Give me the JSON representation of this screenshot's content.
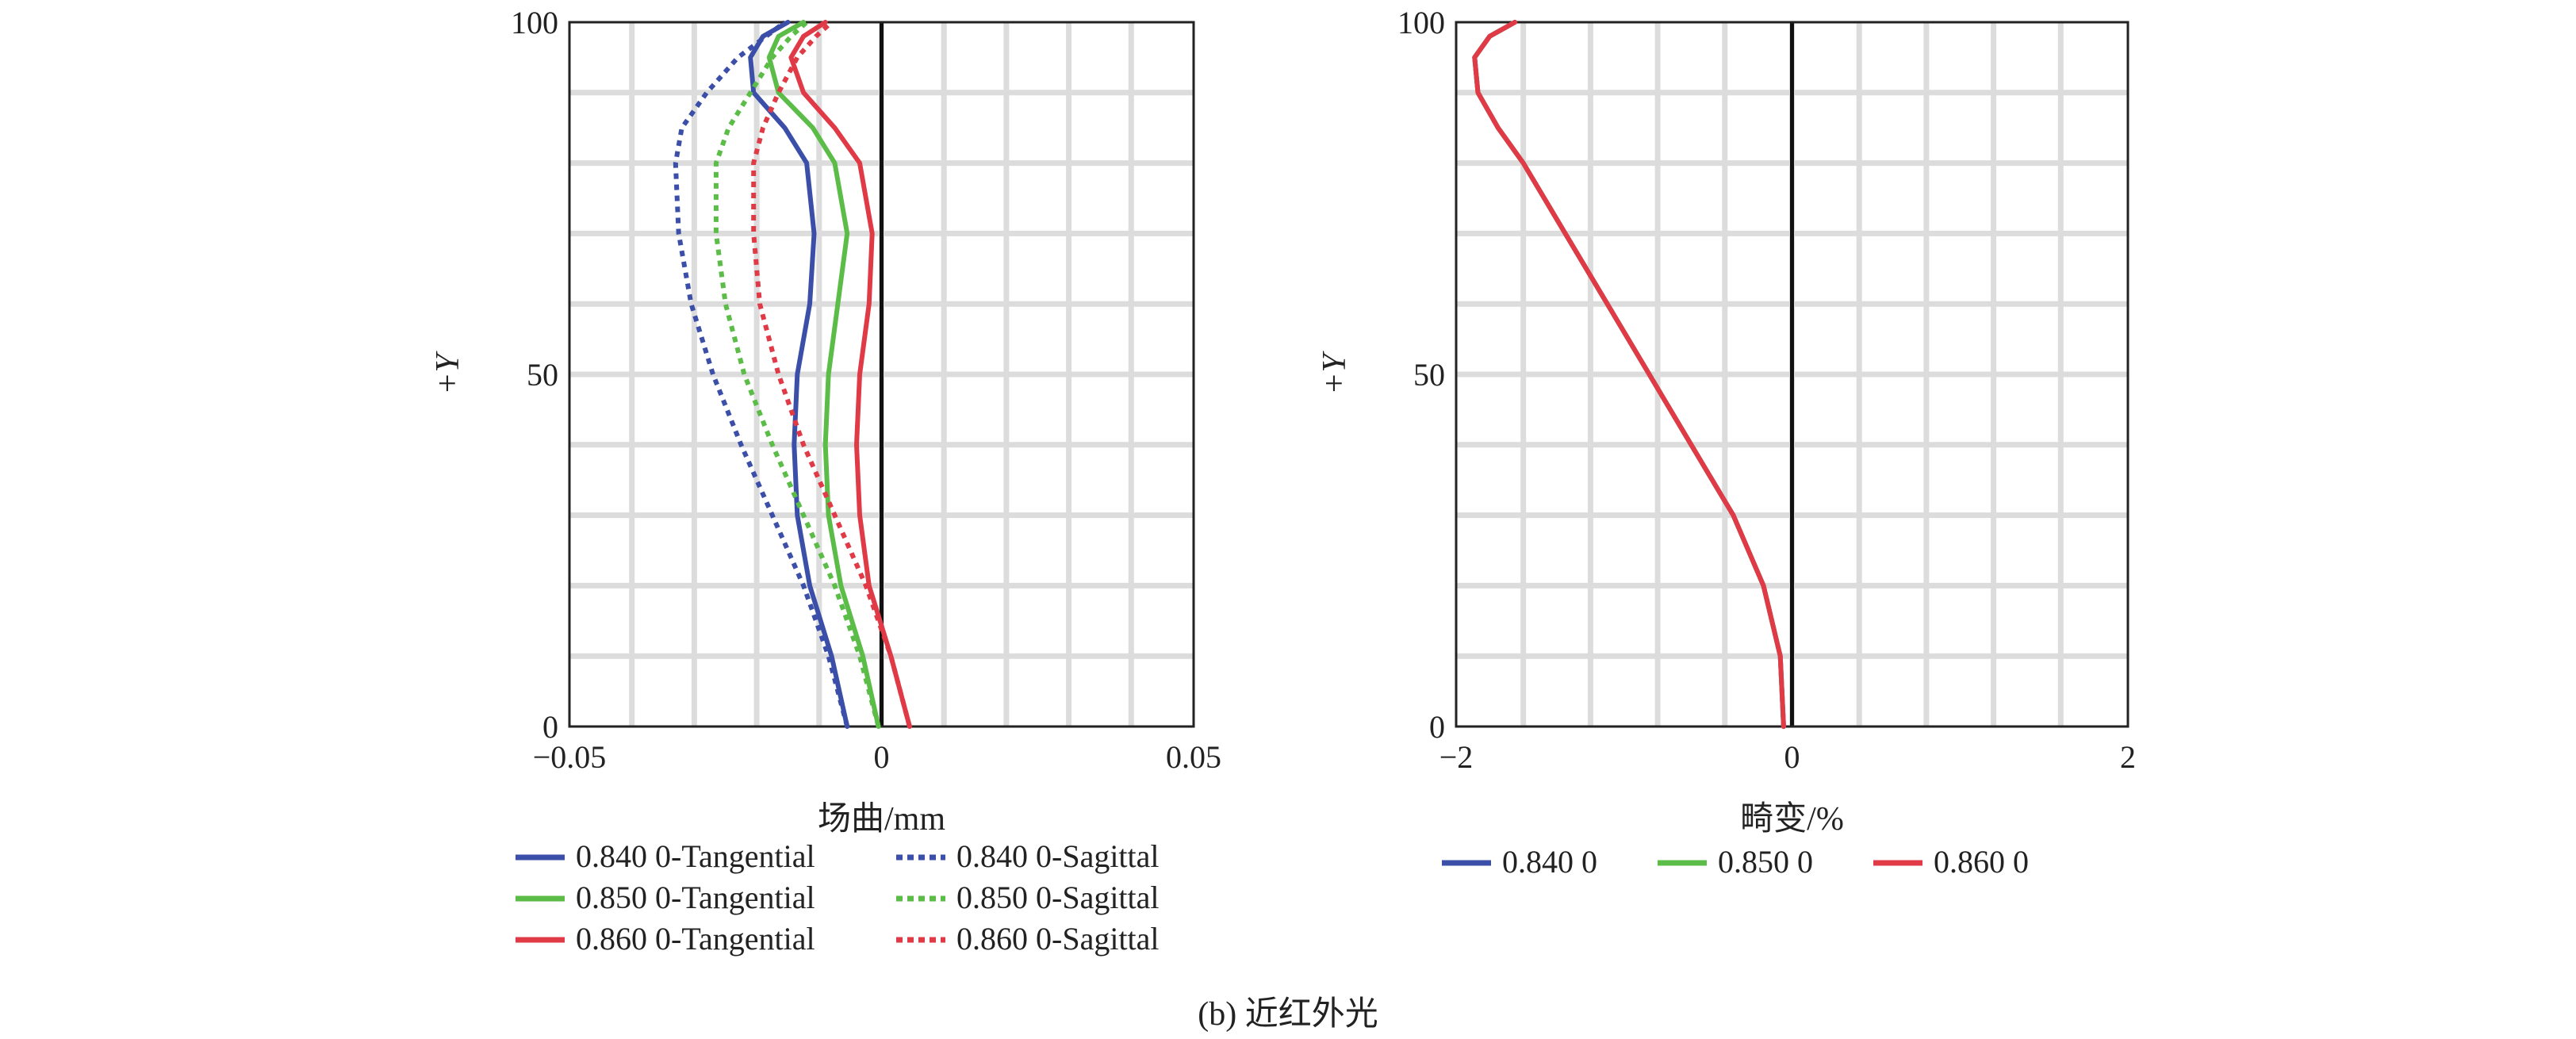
{
  "caption": "(b) 近红外光",
  "chart_data": [
    {
      "type": "line",
      "xlabel": "场曲/mm",
      "ylabel": "+Y",
      "xlim": [
        -0.05,
        0.05
      ],
      "ylim": [
        0,
        100
      ],
      "xticks": [
        "−0.05",
        "0",
        "0.05"
      ],
      "yticks": [
        "0",
        "50",
        "100"
      ],
      "grid": true,
      "legend_position": "bottom",
      "colors": {
        "blue": "#3b4fa8",
        "green": "#5bbd47",
        "red": "#e03a47"
      },
      "series": [
        {
          "name": "0.840 0-Tangential",
          "color": "#3b4fa8",
          "dash": "solid",
          "x": [
            -0.0055,
            -0.008,
            -0.0115,
            -0.0135,
            -0.014,
            -0.0135,
            -0.0115,
            -0.0108,
            -0.012,
            -0.0155,
            -0.0205,
            -0.021,
            -0.019,
            -0.015
          ],
          "y": [
            0,
            10,
            20,
            30,
            40,
            50,
            60,
            70,
            80,
            85,
            90,
            95,
            98,
            100
          ]
        },
        {
          "name": "0.840 0-Sagittal",
          "color": "#3b4fa8",
          "dash": "dotted",
          "x": [
            -0.0055,
            -0.0085,
            -0.0125,
            -0.0175,
            -0.0225,
            -0.027,
            -0.0305,
            -0.0325,
            -0.033,
            -0.032,
            -0.028,
            -0.023,
            -0.0185,
            -0.0155
          ],
          "y": [
            0,
            10,
            20,
            30,
            40,
            50,
            60,
            70,
            80,
            85,
            90,
            95,
            98,
            100
          ]
        },
        {
          "name": "0.850 0-Tangential",
          "color": "#5bbd47",
          "dash": "solid",
          "x": [
            -0.0005,
            -0.003,
            -0.0065,
            -0.0085,
            -0.009,
            -0.0085,
            -0.007,
            -0.0055,
            -0.0075,
            -0.011,
            -0.0165,
            -0.018,
            -0.0165,
            -0.0125
          ],
          "y": [
            0,
            10,
            20,
            30,
            40,
            50,
            60,
            70,
            80,
            85,
            90,
            95,
            98,
            100
          ]
        },
        {
          "name": "0.850 0-Sagittal",
          "color": "#5bbd47",
          "dash": "dotted",
          "x": [
            -0.0005,
            -0.0035,
            -0.0075,
            -0.0125,
            -0.0175,
            -0.022,
            -0.025,
            -0.0265,
            -0.0265,
            -0.0245,
            -0.021,
            -0.0175,
            -0.0145,
            -0.012
          ],
          "y": [
            0,
            10,
            20,
            30,
            40,
            50,
            60,
            70,
            80,
            85,
            90,
            95,
            98,
            100
          ]
        },
        {
          "name": "0.860 0-Tangential",
          "color": "#e03a47",
          "dash": "solid",
          "x": [
            0.0045,
            0.0015,
            -0.002,
            -0.0035,
            -0.004,
            -0.0035,
            -0.002,
            -0.0015,
            -0.0035,
            -0.0075,
            -0.0125,
            -0.0145,
            -0.0125,
            -0.009
          ],
          "y": [
            0,
            10,
            20,
            30,
            40,
            50,
            60,
            70,
            80,
            85,
            90,
            95,
            98,
            100
          ]
        },
        {
          "name": "0.860 0-Sagittal",
          "color": "#e03a47",
          "dash": "dotted",
          "x": [
            0.0045,
            0.0015,
            -0.0025,
            -0.0075,
            -0.0125,
            -0.0165,
            -0.0195,
            -0.0205,
            -0.0205,
            -0.019,
            -0.0165,
            -0.0135,
            -0.0105,
            -0.008
          ],
          "y": [
            0,
            10,
            20,
            30,
            40,
            50,
            60,
            70,
            80,
            85,
            90,
            95,
            98,
            100
          ]
        }
      ]
    },
    {
      "type": "line",
      "xlabel": "畸变/%",
      "ylabel": "+Y",
      "xlim": [
        -2,
        2
      ],
      "ylim": [
        0,
        100
      ],
      "xticks": [
        "−2",
        "0",
        "2"
      ],
      "yticks": [
        "0",
        "50",
        "100"
      ],
      "grid": true,
      "legend_position": "bottom",
      "colors": {
        "blue": "#3b4fa8",
        "green": "#5bbd47",
        "red": "#e03a47"
      },
      "series": [
        {
          "name": "0.840 0",
          "color": "#3b4fa8",
          "dash": "solid",
          "x": [
            -0.05,
            -0.07,
            -0.17,
            -0.35,
            -0.6,
            -0.85,
            -1.1,
            -1.35,
            -1.6,
            -1.75,
            -1.87,
            -1.89,
            -1.8,
            -1.65
          ],
          "y": [
            0,
            10,
            20,
            30,
            40,
            50,
            60,
            70,
            80,
            85,
            90,
            95,
            98,
            100
          ]
        },
        {
          "name": "0.850 0",
          "color": "#5bbd47",
          "dash": "solid",
          "x": [
            -0.05,
            -0.07,
            -0.17,
            -0.35,
            -0.6,
            -0.85,
            -1.1,
            -1.35,
            -1.6,
            -1.75,
            -1.87,
            -1.89,
            -1.8,
            -1.65
          ],
          "y": [
            0,
            10,
            20,
            30,
            40,
            50,
            60,
            70,
            80,
            85,
            90,
            95,
            98,
            100
          ]
        },
        {
          "name": "0.860 0",
          "color": "#e03a47",
          "dash": "solid",
          "x": [
            -0.05,
            -0.07,
            -0.17,
            -0.35,
            -0.6,
            -0.85,
            -1.1,
            -1.35,
            -1.6,
            -1.75,
            -1.87,
            -1.89,
            -1.8,
            -1.65
          ],
          "y": [
            0,
            10,
            20,
            30,
            40,
            50,
            60,
            70,
            80,
            85,
            90,
            95,
            98,
            100
          ]
        }
      ]
    }
  ]
}
